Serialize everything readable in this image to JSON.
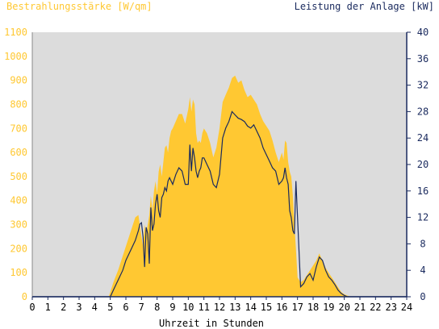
{
  "chart_data": {
    "type": "area",
    "title_left": "Bestrahlungsstärke [W/qm]",
    "title_right": "Leistung der Anlage [kW]",
    "xlabel": "Uhrzeit in Stunden",
    "x_ticks": [
      "0",
      "1",
      "2",
      "3",
      "4",
      "5",
      "6",
      "7",
      "8",
      "9",
      "10",
      "11",
      "12",
      "13",
      "14",
      "15",
      "16",
      "17",
      "18",
      "19",
      "20",
      "21",
      "22",
      "23",
      "24"
    ],
    "xlim": [
      0,
      24
    ],
    "y_left_ticks": [
      "0",
      "100",
      "200",
      "300",
      "400",
      "500",
      "600",
      "700",
      "800",
      "900",
      "1000",
      "1100"
    ],
    "ylim_left": [
      0,
      1100
    ],
    "y_right_ticks": [
      "0",
      "4",
      "8",
      "12",
      "16",
      "20",
      "24",
      "28",
      "32",
      "36",
      "40"
    ],
    "ylim_right": [
      0,
      40
    ],
    "grid": false,
    "colors": {
      "background": "#dcdcdc",
      "irradiance_fill": "#ffc832",
      "power_line": "#1a2a5e",
      "left_axis_text": "#ffc832",
      "right_axis_text": "#1a2a5e",
      "axis_line": "#1a2a5e"
    },
    "series": [
      {
        "kind": "area",
        "axis": "left",
        "x": [
          0,
          4.9,
          5.0,
          5.2,
          5.5,
          6.0,
          6.3,
          6.6,
          6.8,
          7.0,
          7.1,
          7.2,
          7.3,
          7.4,
          7.5,
          7.6,
          7.7,
          7.8,
          7.9,
          8.0,
          8.1,
          8.2,
          8.3,
          8.4,
          8.5,
          8.6,
          8.7,
          8.8,
          8.9,
          9.0,
          9.2,
          9.4,
          9.6,
          9.8,
          10.0,
          10.1,
          10.2,
          10.3,
          10.4,
          10.5,
          10.6,
          10.7,
          10.8,
          10.9,
          11.0,
          11.2,
          11.4,
          11.6,
          11.8,
          12.0,
          12.2,
          12.4,
          12.6,
          12.8,
          13.0,
          13.2,
          13.4,
          13.6,
          13.8,
          14.0,
          14.2,
          14.4,
          14.6,
          14.8,
          15.0,
          15.2,
          15.4,
          15.6,
          15.8,
          16.0,
          16.1,
          16.2,
          16.3,
          16.4,
          16.5,
          16.6,
          16.7,
          16.8,
          16.9,
          17.0,
          17.2,
          17.4,
          17.6,
          17.8,
          18.0,
          18.2,
          18.4,
          18.6,
          18.8,
          19.0,
          19.2,
          19.4,
          19.6,
          19.8,
          20.0,
          20.2,
          20.4,
          20.6,
          24
        ],
        "values": [
          0,
          0,
          20,
          60,
          110,
          210,
          270,
          330,
          340,
          250,
          210,
          300,
          260,
          300,
          340,
          420,
          360,
          440,
          480,
          430,
          520,
          550,
          500,
          560,
          620,
          630,
          600,
          660,
          690,
          700,
          730,
          760,
          760,
          720,
          780,
          830,
          770,
          820,
          800,
          680,
          640,
          650,
          640,
          680,
          700,
          680,
          640,
          580,
          620,
          700,
          810,
          840,
          870,
          910,
          920,
          890,
          900,
          860,
          830,
          840,
          820,
          800,
          760,
          730,
          710,
          690,
          650,
          600,
          560,
          600,
          570,
          650,
          640,
          560,
          520,
          500,
          420,
          300,
          200,
          80,
          60,
          70,
          90,
          110,
          130,
          150,
          180,
          150,
          120,
          100,
          80,
          60,
          40,
          20,
          10,
          5,
          0,
          0,
          0
        ],
        "name": ""
      },
      {
        "kind": "line",
        "axis": "right",
        "x": [
          0,
          5.0,
          5.2,
          5.5,
          5.8,
          6.0,
          6.3,
          6.6,
          6.8,
          6.9,
          7.0,
          7.1,
          7.2,
          7.3,
          7.4,
          7.5,
          7.6,
          7.7,
          7.8,
          7.9,
          8.0,
          8.1,
          8.2,
          8.3,
          8.4,
          8.5,
          8.6,
          8.7,
          8.8,
          9.0,
          9.2,
          9.4,
          9.6,
          9.8,
          10.0,
          10.1,
          10.2,
          10.3,
          10.4,
          10.5,
          10.6,
          10.7,
          10.8,
          10.9,
          11.0,
          11.2,
          11.4,
          11.6,
          11.8,
          12.0,
          12.2,
          12.4,
          12.6,
          12.8,
          13.0,
          13.2,
          13.4,
          13.6,
          13.8,
          14.0,
          14.2,
          14.4,
          14.6,
          14.8,
          15.0,
          15.2,
          15.4,
          15.6,
          15.8,
          16.0,
          16.1,
          16.2,
          16.3,
          16.4,
          16.5,
          16.6,
          16.7,
          16.8,
          16.9,
          17.0,
          17.2,
          17.4,
          17.6,
          17.8,
          18.0,
          18.2,
          18.4,
          18.6,
          18.8,
          19.0,
          19.2,
          19.4,
          19.6,
          19.8,
          20.0,
          20.2,
          20.4,
          20.6,
          24
        ],
        "values": [
          0,
          0,
          1.0,
          2.5,
          4.0,
          5.5,
          7.0,
          8.5,
          10.0,
          11.0,
          11.2,
          9.0,
          4.5,
          10.5,
          9.5,
          5.0,
          13.5,
          10.0,
          11.0,
          14.0,
          15.5,
          13.0,
          12.0,
          15.0,
          15.5,
          16.5,
          16.0,
          17.5,
          18.0,
          17.0,
          18.5,
          19.5,
          19.0,
          17.0,
          17.0,
          23.0,
          19.0,
          22.5,
          21.0,
          19.0,
          18.0,
          19.0,
          19.5,
          21.0,
          21.0,
          20.0,
          19.0,
          17.0,
          16.5,
          18.5,
          24.0,
          25.5,
          26.5,
          28.0,
          27.5,
          27.0,
          26.8,
          26.5,
          25.8,
          25.5,
          26.0,
          25.0,
          24.0,
          22.5,
          21.5,
          20.5,
          19.5,
          19.0,
          17.0,
          17.5,
          18.0,
          19.5,
          18.0,
          17.0,
          13.0,
          12.0,
          10.0,
          9.5,
          17.5,
          12.0,
          1.5,
          2.0,
          3.0,
          3.5,
          2.5,
          4.5,
          6.0,
          5.5,
          4.0,
          3.0,
          2.5,
          1.8,
          1.0,
          0.5,
          0.2,
          0,
          0,
          0,
          0
        ],
        "name": ""
      }
    ]
  }
}
